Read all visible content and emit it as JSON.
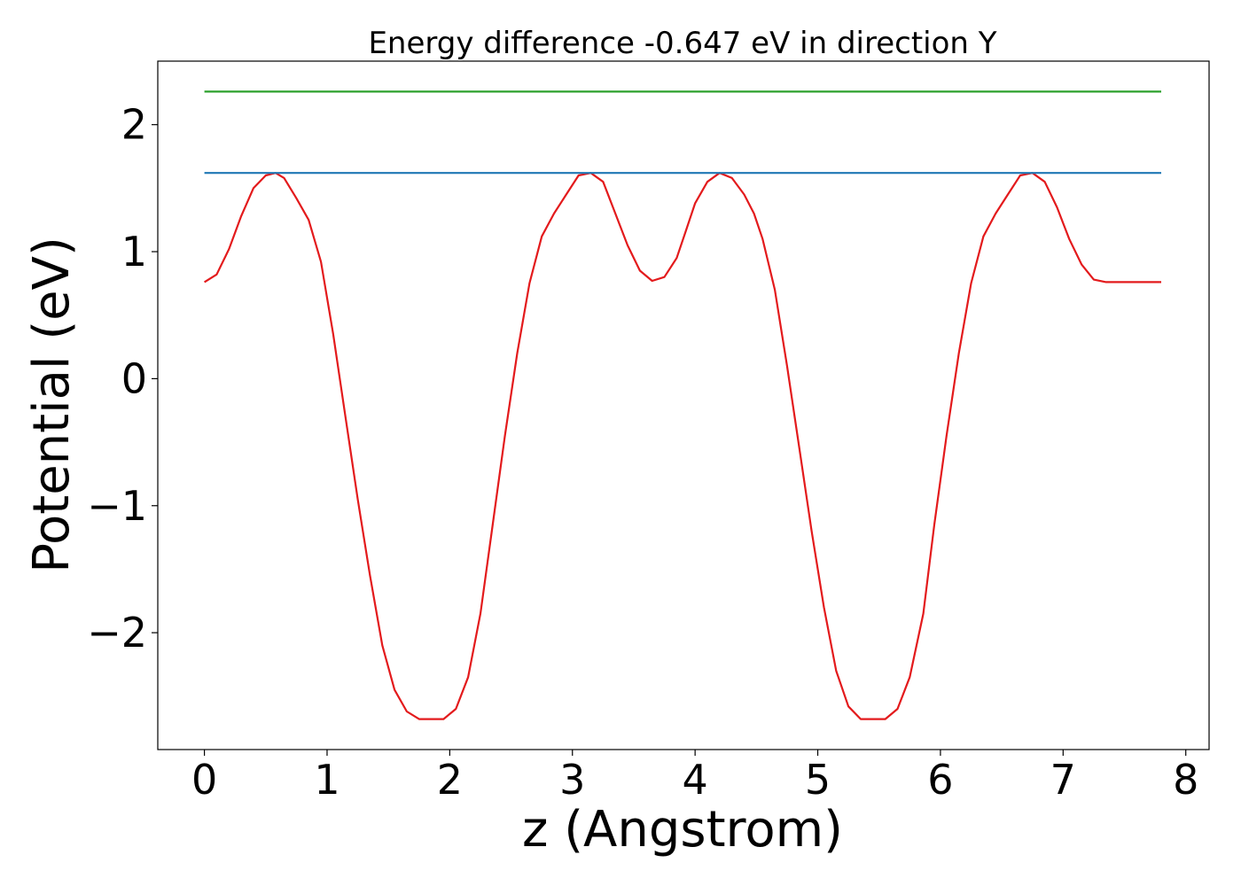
{
  "chart_data": {
    "type": "line",
    "title": "Energy difference -0.647 eV in direction Y",
    "xlabel": "z (Angstrom)",
    "ylabel": "Potential (eV)",
    "xlim": [
      -0.38,
      8.19
    ],
    "ylim": [
      -2.92,
      2.5
    ],
    "xticks": [
      0,
      1,
      2,
      3,
      4,
      5,
      6,
      7,
      8
    ],
    "xtick_labels": [
      "0",
      "1",
      "2",
      "3",
      "4",
      "5",
      "6",
      "7",
      "8"
    ],
    "yticks": [
      -2,
      -1,
      0,
      1,
      2
    ],
    "ytick_labels": [
      "−2",
      "−1",
      "0",
      "1",
      "2"
    ],
    "grid": false,
    "legend": "none",
    "series": [
      {
        "color": "#e31a1c",
        "x": [
          0.0,
          0.1,
          0.2,
          0.3,
          0.4,
          0.5,
          0.58,
          0.65,
          0.75,
          0.85,
          0.95,
          1.05,
          1.15,
          1.25,
          1.35,
          1.45,
          1.55,
          1.65,
          1.75,
          1.85,
          1.95,
          2.05,
          2.15,
          2.25,
          2.35,
          2.45,
          2.55,
          2.65,
          2.75,
          2.85,
          2.95,
          3.05,
          3.15,
          3.25,
          3.35,
          3.45,
          3.55,
          3.65,
          3.75,
          3.85,
          3.92,
          4.0,
          4.1,
          4.2,
          4.3,
          4.4,
          4.48,
          4.55,
          4.65,
          4.75,
          4.85,
          4.95,
          5.05,
          5.15,
          5.25,
          5.35,
          5.45,
          5.55,
          5.65,
          5.75,
          5.86,
          5.95,
          6.05,
          6.15,
          6.25,
          6.35,
          6.45,
          6.55,
          6.65,
          6.75,
          6.85,
          6.95,
          7.05,
          7.15,
          7.25,
          7.35,
          7.45,
          7.55,
          7.65,
          7.75,
          7.8
        ],
        "y": [
          0.76,
          0.82,
          1.02,
          1.28,
          1.5,
          1.6,
          1.62,
          1.58,
          1.42,
          1.25,
          0.92,
          0.35,
          -0.3,
          -0.95,
          -1.55,
          -2.1,
          -2.45,
          -2.62,
          -2.68,
          -2.68,
          -2.68,
          -2.6,
          -2.35,
          -1.85,
          -1.15,
          -0.45,
          0.2,
          0.75,
          1.12,
          1.3,
          1.45,
          1.6,
          1.62,
          1.55,
          1.3,
          1.05,
          0.85,
          0.77,
          0.8,
          0.95,
          1.15,
          1.38,
          1.55,
          1.62,
          1.58,
          1.45,
          1.3,
          1.1,
          0.7,
          0.1,
          -0.55,
          -1.2,
          -1.8,
          -2.3,
          -2.58,
          -2.68,
          -2.68,
          -2.68,
          -2.6,
          -2.35,
          -1.85,
          -1.15,
          -0.45,
          0.2,
          0.75,
          1.12,
          1.3,
          1.45,
          1.6,
          1.62,
          1.55,
          1.35,
          1.1,
          0.9,
          0.78,
          0.76,
          0.76,
          0.76,
          0.76,
          0.76,
          0.76
        ]
      },
      {
        "color": "#1f77b4",
        "x": [
          0.0,
          7.8
        ],
        "y": [
          1.62,
          1.62
        ]
      },
      {
        "color": "#2ca02c",
        "x": [
          0.0,
          7.8
        ],
        "y": [
          2.26,
          2.26
        ]
      }
    ]
  }
}
